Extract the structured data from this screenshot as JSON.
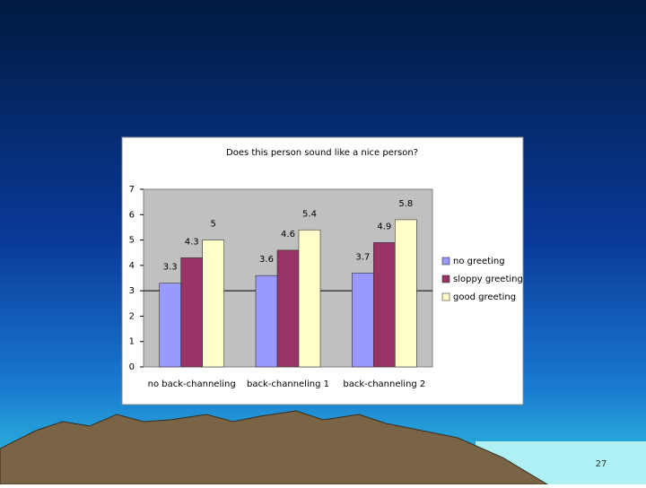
{
  "chart_data": {
    "type": "bar",
    "title": "Does this person sound like a nice person?",
    "categories": [
      "no back-channeling",
      "back-channeling 1",
      "back-channeling 2"
    ],
    "series": [
      {
        "name": "no greeting",
        "color": "#9999ff",
        "values": [
          3.3,
          3.6,
          3.7
        ]
      },
      {
        "name": "sloppy greeting",
        "color": "#993366",
        "values": [
          4.3,
          4.6,
          4.9
        ]
      },
      {
        "name": "good greeting",
        "color": "#ffffcc",
        "values": [
          5,
          5.4,
          5.8
        ]
      }
    ],
    "ylim": [
      0,
      7
    ],
    "yticks": [
      0,
      1,
      2,
      3,
      4,
      5,
      6,
      7
    ],
    "reference_line": 3,
    "legend": "right"
  },
  "slide_number": "27"
}
